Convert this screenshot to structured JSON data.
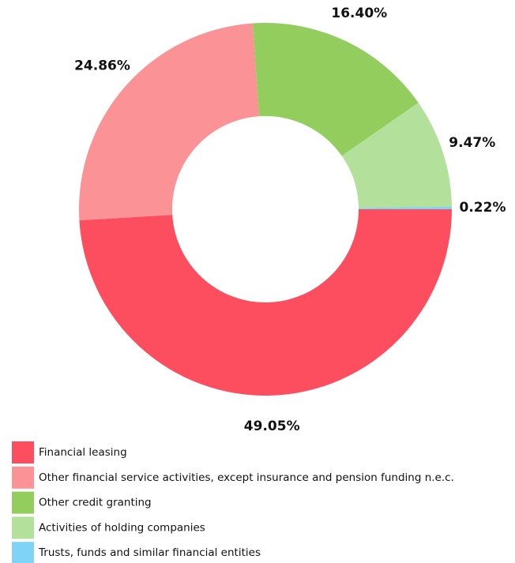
{
  "chart_data": {
    "type": "donut",
    "categories": [
      "Financial leasing",
      "Other financial service activities, except insurance and pension funding n.e.c.",
      "Other credit granting",
      "Activities of holding companies",
      "Trusts, funds and similar financial entities"
    ],
    "values": [
      49.05,
      24.86,
      16.4,
      9.47,
      0.22
    ],
    "value_labels": [
      "49.05%",
      "24.86%",
      "16.40%",
      "9.47%",
      "0.22%"
    ],
    "colors": [
      "#fc4e5f",
      "#fb9396",
      "#92cd5e",
      "#b3e09a",
      "#7fd3f6"
    ]
  }
}
